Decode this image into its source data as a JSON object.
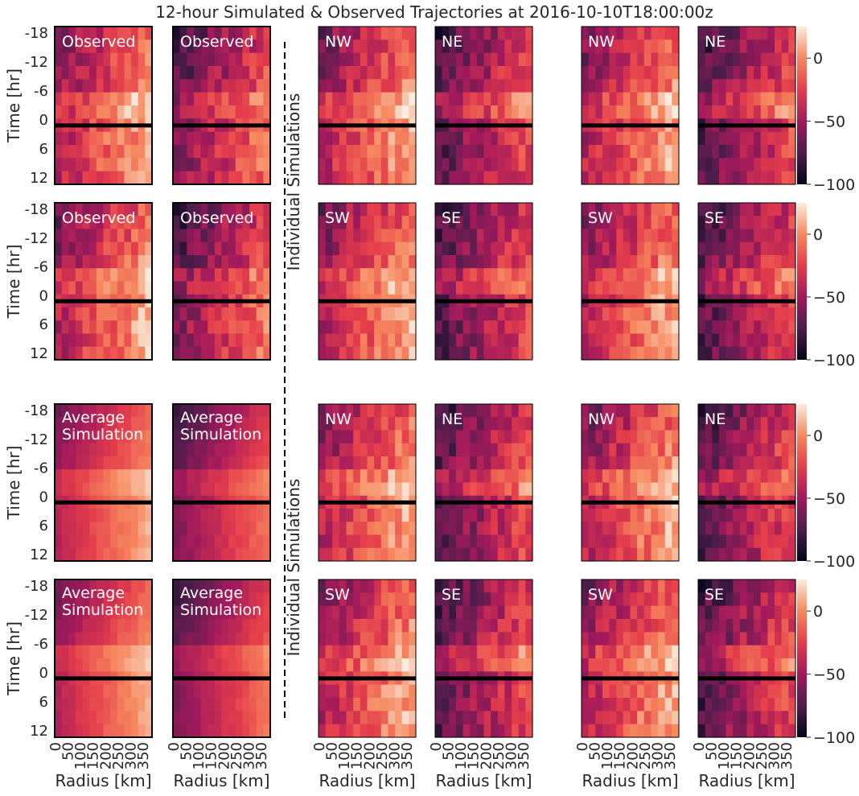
{
  "chart_data": {
    "type": "heatmap",
    "title": "12-hour Simulated & Observed Trajectories at 2016-10-10T18:00:00z",
    "ylabel": "Time [hr]",
    "xlabel": "Radius [km]",
    "y_tick_labels": [
      "-18",
      "-12",
      "-6",
      "0",
      "6",
      "12"
    ],
    "x_tick_labels": [
      "0",
      "50",
      "100",
      "150",
      "200",
      "250",
      "300",
      "350"
    ],
    "group_label": "Individual Simulations",
    "colorbar": {
      "ticks": [
        "0",
        "−50",
        "−100"
      ],
      "range": [
        -100,
        25
      ],
      "colormap": "rocket"
    },
    "panel_labels": {
      "observed": "Observed",
      "average": [
        "Average",
        "Simulation"
      ],
      "quadrants": [
        "NW",
        "NE",
        "SW",
        "SE"
      ]
    },
    "grid": {
      "rows": 12,
      "cols": 14,
      "time_hr": [
        -18,
        12
      ],
      "radius_km": [
        0,
        400
      ]
    }
  }
}
